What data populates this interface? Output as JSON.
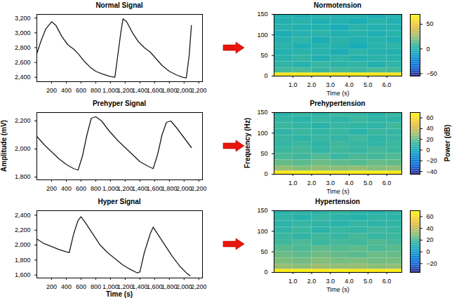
{
  "chart_data": [
    {
      "type": "line",
      "title": "Normal Signal",
      "color": "#1a1a1a",
      "x": [
        0,
        60,
        120,
        200,
        260,
        340,
        420,
        500,
        560,
        640,
        720,
        800,
        900,
        1000,
        1060,
        1100,
        1140,
        1170,
        1220,
        1300,
        1380,
        1460,
        1540,
        1620,
        1700,
        1800,
        1900,
        1980,
        2030,
        2070,
        2100
      ],
      "values": [
        2720,
        2900,
        3050,
        3150,
        3100,
        2950,
        2840,
        2780,
        2720,
        2620,
        2540,
        2480,
        2440,
        2410,
        2400,
        2700,
        3000,
        3190,
        3150,
        3000,
        2880,
        2800,
        2740,
        2650,
        2560,
        2480,
        2430,
        2400,
        2390,
        2700,
        3100
      ],
      "xlim": [
        0,
        2250
      ],
      "xticks": [
        200,
        400,
        600,
        800,
        1000,
        1200,
        1400,
        1600,
        1800,
        2000,
        2200
      ],
      "ylim": [
        2340,
        3250
      ],
      "yticks": [
        2400,
        2600,
        2800,
        3000,
        3200
      ]
    },
    {
      "type": "line",
      "title": "Prehyper Signal",
      "color": "#1a1a1a",
      "ylabel": "Amplitude (mV)",
      "x": [
        0,
        100,
        200,
        300,
        400,
        500,
        560,
        620,
        680,
        740,
        800,
        880,
        980,
        1100,
        1200,
        1300,
        1400,
        1500,
        1580,
        1640,
        1700,
        1760,
        1820,
        1900,
        2000,
        2100
      ],
      "values": [
        2090,
        2030,
        1980,
        1930,
        1890,
        1860,
        1850,
        1950,
        2100,
        2220,
        2230,
        2200,
        2130,
        2060,
        2010,
        1960,
        1910,
        1880,
        1860,
        1960,
        2100,
        2190,
        2200,
        2150,
        2080,
        2010
      ],
      "xlim": [
        0,
        2250
      ],
      "xticks": [
        200,
        400,
        600,
        800,
        1000,
        1200,
        1400,
        1600,
        1800,
        2000,
        2200
      ],
      "ylim": [
        1780,
        2260
      ],
      "yticks": [
        1800,
        2000,
        2200
      ]
    },
    {
      "type": "line",
      "title": "Hyper Signal",
      "color": "#1a1a1a",
      "xlabel": "Time (s)",
      "x": [
        0,
        100,
        200,
        300,
        400,
        440,
        500,
        560,
        600,
        660,
        760,
        860,
        960,
        1060,
        1160,
        1260,
        1360,
        1400,
        1460,
        1540,
        1580,
        1640,
        1740,
        1840,
        1940,
        2040,
        2080
      ],
      "values": [
        2080,
        2020,
        1980,
        1940,
        1910,
        1900,
        2150,
        2330,
        2380,
        2300,
        2150,
        2000,
        1900,
        1820,
        1740,
        1680,
        1630,
        1640,
        1900,
        2150,
        2240,
        2150,
        2000,
        1850,
        1720,
        1620,
        1590
      ],
      "xlim": [
        0,
        2250
      ],
      "xticks": [
        200,
        400,
        600,
        800,
        1000,
        1200,
        1400,
        1600,
        1800,
        2000,
        2200
      ],
      "ylim": [
        1560,
        2460
      ],
      "yticks": [
        1600,
        1800,
        2000,
        2200,
        2400
      ]
    },
    {
      "type": "heatmap",
      "title": "Normotension",
      "xlabel": "Time (s)",
      "xlim": [
        0,
        6.8
      ],
      "xticks": [
        1,
        2,
        3,
        4,
        5,
        6
      ],
      "ylim": [
        0,
        150
      ],
      "yticks": [
        0,
        50,
        100,
        150
      ],
      "cells": {
        "t": [
          0,
          1,
          2,
          3,
          4,
          5,
          6,
          6.8
        ],
        "f": [
          0,
          8,
          20,
          35,
          50,
          65,
          80,
          95,
          110,
          125,
          140,
          150
        ],
        "values": [
          [
            62,
            64,
            63,
            62,
            64,
            63,
            62
          ],
          [
            8,
            10,
            6,
            9,
            7,
            10,
            8
          ],
          [
            4,
            2,
            6,
            3,
            5,
            1,
            4
          ],
          [
            2,
            5,
            0,
            4,
            1,
            3,
            2
          ],
          [
            0,
            3,
            2,
            -2,
            4,
            1,
            0
          ],
          [
            3,
            -1,
            2,
            1,
            -3,
            2,
            4
          ],
          [
            1,
            4,
            -2,
            3,
            0,
            2,
            -1
          ],
          [
            -2,
            1,
            3,
            0,
            2,
            -1,
            2
          ],
          [
            2,
            0,
            1,
            -3,
            3,
            0,
            1
          ],
          [
            0,
            2,
            -1,
            1,
            -2,
            3,
            0
          ],
          [
            1,
            -1,
            2,
            0,
            1,
            -2,
            2
          ]
        ]
      },
      "colorbar": {
        "range": [
          -55,
          70
        ],
        "ticks": [
          -50,
          0,
          50
        ]
      }
    },
    {
      "type": "heatmap",
      "title": "Prehypertension",
      "xlabel": "Time (s)",
      "ylabel": "Frequency (Hz)",
      "xlim": [
        0,
        6.8
      ],
      "xticks": [
        1,
        2,
        3,
        4,
        5,
        6
      ],
      "ylim": [
        0,
        150
      ],
      "yticks": [
        0,
        50,
        100,
        150
      ],
      "cells": {
        "t": [
          0,
          1,
          2,
          3,
          4,
          5,
          6,
          6.8
        ],
        "f": [
          0,
          8,
          20,
          35,
          50,
          65,
          80,
          95,
          110,
          125,
          140,
          150
        ],
        "values": [
          [
            64,
            66,
            65,
            64,
            65,
            66,
            64
          ],
          [
            28,
            25,
            27,
            26,
            28,
            25,
            27
          ],
          [
            20,
            18,
            21,
            19,
            17,
            20,
            19
          ],
          [
            15,
            13,
            16,
            12,
            15,
            14,
            16
          ],
          [
            12,
            14,
            10,
            13,
            11,
            14,
            12
          ],
          [
            10,
            12,
            9,
            13,
            11,
            10,
            12
          ],
          [
            11,
            9,
            12,
            10,
            13,
            9,
            11
          ],
          [
            9,
            12,
            10,
            11,
            8,
            12,
            10
          ],
          [
            12,
            10,
            8,
            11,
            10,
            9,
            13
          ],
          [
            10,
            8,
            11,
            9,
            12,
            10,
            9
          ],
          [
            8,
            11,
            9,
            12,
            10,
            8,
            11
          ]
        ]
      },
      "colorbar": {
        "range": [
          -45,
          70
        ],
        "ticks": [
          -40,
          -20,
          0,
          20,
          40,
          60
        ],
        "label": "Power (dB)"
      }
    },
    {
      "type": "heatmap",
      "title": "Hypertension",
      "xlabel": "Time (s)",
      "xlim": [
        0,
        6.8
      ],
      "xticks": [
        1,
        2,
        3,
        4,
        5,
        6
      ],
      "ylim": [
        0,
        150
      ],
      "yticks": [
        0,
        50,
        100,
        150
      ],
      "cells": {
        "t": [
          0,
          1,
          2,
          3,
          4,
          5,
          6,
          6.8
        ],
        "f": [
          0,
          8,
          20,
          35,
          50,
          65,
          80,
          95,
          110,
          125,
          140,
          150
        ],
        "values": [
          [
            65,
            66,
            65,
            66,
            64,
            65,
            66
          ],
          [
            32,
            30,
            33,
            31,
            32,
            30,
            31
          ],
          [
            28,
            26,
            29,
            27,
            28,
            26,
            27
          ],
          [
            25,
            23,
            26,
            24,
            22,
            25,
            24
          ],
          [
            22,
            20,
            23,
            21,
            23,
            20,
            22
          ],
          [
            18,
            20,
            17,
            19,
            18,
            21,
            19
          ],
          [
            17,
            15,
            18,
            16,
            19,
            16,
            17
          ],
          [
            15,
            17,
            14,
            16,
            15,
            18,
            16
          ],
          [
            14,
            16,
            15,
            13,
            16,
            14,
            15
          ],
          [
            15,
            13,
            16,
            14,
            13,
            15,
            14
          ],
          [
            13,
            15,
            14,
            16,
            14,
            13,
            15
          ]
        ]
      },
      "colorbar": {
        "range": [
          -35,
          70
        ],
        "ticks": [
          -20,
          0,
          20,
          40,
          60
        ]
      }
    }
  ]
}
